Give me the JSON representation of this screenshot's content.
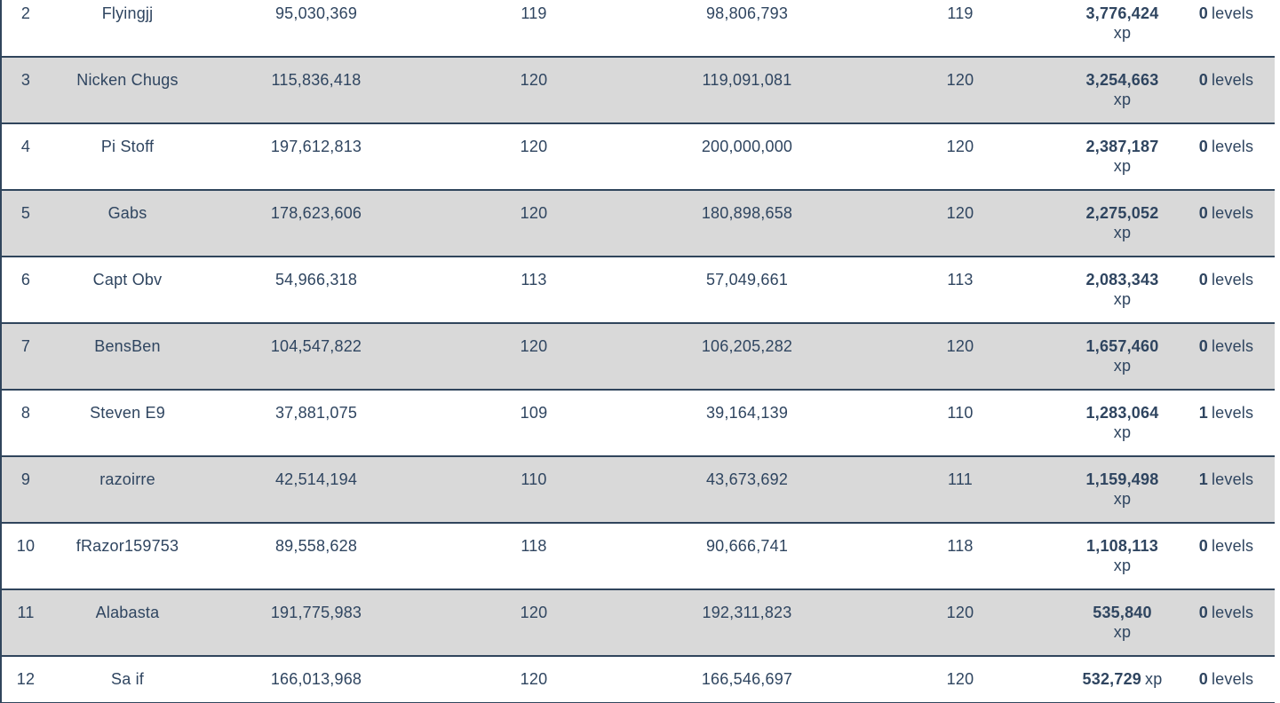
{
  "colors": {
    "text": "#2f4560",
    "row_border": "#30455c",
    "stripe": "#d9d9d9",
    "background": "#ffffff"
  },
  "units": {
    "xp": "xp",
    "levels": "levels"
  },
  "chart_data": {
    "type": "table",
    "columns": [
      "rank",
      "name",
      "xp_start",
      "level_start",
      "xp_end",
      "level_end",
      "xp_gain",
      "levels_gain"
    ]
  },
  "table": {
    "rows": [
      {
        "rank": "2",
        "name": "Flyingjj",
        "xp_start": "95,030,369",
        "level_start": "119",
        "xp_end": "98,806,793",
        "level_end": "119",
        "xp_gain": "3,776,424",
        "xp_unit": "xp",
        "levels_gain": "0",
        "levels_unit": "levels",
        "gain_inline": false
      },
      {
        "rank": "3",
        "name": "Nicken Chugs",
        "xp_start": "115,836,418",
        "level_start": "120",
        "xp_end": "119,091,081",
        "level_end": "120",
        "xp_gain": "3,254,663",
        "xp_unit": "xp",
        "levels_gain": "0",
        "levels_unit": "levels",
        "gain_inline": false
      },
      {
        "rank": "4",
        "name": "Pi Stoff",
        "xp_start": "197,612,813",
        "level_start": "120",
        "xp_end": "200,000,000",
        "level_end": "120",
        "xp_gain": "2,387,187",
        "xp_unit": "xp",
        "levels_gain": "0",
        "levels_unit": "levels",
        "gain_inline": false
      },
      {
        "rank": "5",
        "name": "Gabs",
        "xp_start": "178,623,606",
        "level_start": "120",
        "xp_end": "180,898,658",
        "level_end": "120",
        "xp_gain": "2,275,052",
        "xp_unit": "xp",
        "levels_gain": "0",
        "levels_unit": "levels",
        "gain_inline": false
      },
      {
        "rank": "6",
        "name": "Capt Obv",
        "xp_start": "54,966,318",
        "level_start": "113",
        "xp_end": "57,049,661",
        "level_end": "113",
        "xp_gain": "2,083,343",
        "xp_unit": "xp",
        "levels_gain": "0",
        "levels_unit": "levels",
        "gain_inline": false
      },
      {
        "rank": "7",
        "name": "BensBen",
        "xp_start": "104,547,822",
        "level_start": "120",
        "xp_end": "106,205,282",
        "level_end": "120",
        "xp_gain": "1,657,460",
        "xp_unit": "xp",
        "levels_gain": "0",
        "levels_unit": "levels",
        "gain_inline": false
      },
      {
        "rank": "8",
        "name": "Steven E9",
        "xp_start": "37,881,075",
        "level_start": "109",
        "xp_end": "39,164,139",
        "level_end": "110",
        "xp_gain": "1,283,064",
        "xp_unit": "xp",
        "levels_gain": "1",
        "levels_unit": "levels",
        "gain_inline": false
      },
      {
        "rank": "9",
        "name": "razoirre",
        "xp_start": "42,514,194",
        "level_start": "110",
        "xp_end": "43,673,692",
        "level_end": "111",
        "xp_gain": "1,159,498",
        "xp_unit": "xp",
        "levels_gain": "1",
        "levels_unit": "levels",
        "gain_inline": false
      },
      {
        "rank": "10",
        "name": "fRazor159753",
        "xp_start": "89,558,628",
        "level_start": "118",
        "xp_end": "90,666,741",
        "level_end": "118",
        "xp_gain": "1,108,113",
        "xp_unit": "xp",
        "levels_gain": "0",
        "levels_unit": "levels",
        "gain_inline": false
      },
      {
        "rank": "11",
        "name": "Alabasta",
        "xp_start": "191,775,983",
        "level_start": "120",
        "xp_end": "192,311,823",
        "level_end": "120",
        "xp_gain": "535,840",
        "xp_unit": "xp",
        "levels_gain": "0",
        "levels_unit": "levels",
        "gain_inline": false
      },
      {
        "rank": "12",
        "name": "Sa if",
        "xp_start": "166,013,968",
        "level_start": "120",
        "xp_end": "166,546,697",
        "level_end": "120",
        "xp_gain": "532,729",
        "xp_unit": "xp",
        "levels_gain": "0",
        "levels_unit": "levels",
        "gain_inline": true
      }
    ]
  }
}
